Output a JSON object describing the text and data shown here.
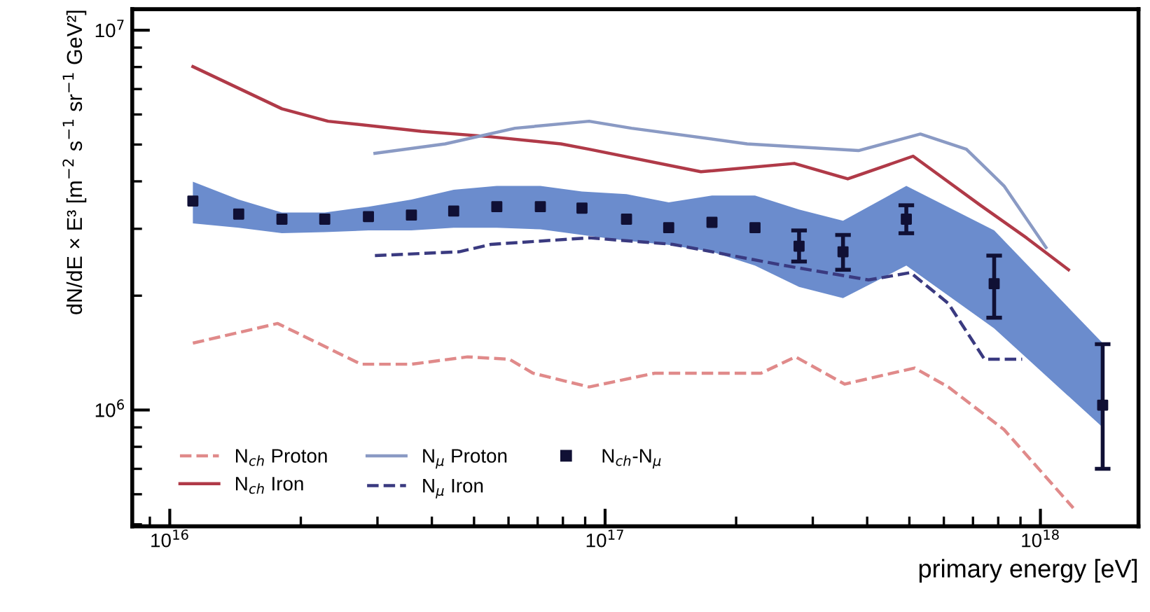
{
  "chart_data": {
    "type": "line",
    "xlabel": "primary energy [eV]",
    "ylabel": "dN/dE × E³ [m$^{−2}$ s$^{−1}$ sr$^{−1}$ GeV²]",
    "log": "xy",
    "xlim": [
      8200000000000000.0,
      1.68e+18
    ],
    "ylim": [
      494000,
      11360000
    ],
    "xticks": [
      {
        "value": 1e+16,
        "label": "10$^{16}$"
      },
      {
        "value": 1e+17,
        "label": "10$^{17}$"
      },
      {
        "value": 1e+18,
        "label": "10$^{18}$"
      }
    ],
    "yticks": [
      {
        "value": 1000000,
        "label": "10$^{6}$"
      },
      {
        "value": 10000000,
        "label": "10$^{7}$"
      }
    ],
    "grid": false,
    "legend": "bottom left",
    "series": [
      {
        "name": "N$_{ch}$ Proton",
        "color": "#e08a8a",
        "line_style": "dashed",
        "marker": "none",
        "x": [
          1.13e+16,
          1.77e+16,
          2.75e+16,
          3.59e+16,
          4.83e+16,
          6.03e+16,
          6.83e+16,
          9.19e+16,
          1.3e+17,
          2.28e+17,
          2.74e+17,
          3.55e+17,
          5.14e+17,
          6.14e+17,
          8.25e+17,
          1.19e+18
        ],
        "values": [
          1500000,
          1690000,
          1320000,
          1320000,
          1380000,
          1360000,
          1250000,
          1150000,
          1250000,
          1250000,
          1380000,
          1170000,
          1290000,
          1150000,
          888000,
          552000
        ]
      },
      {
        "name": "N$_{ch}$ Iron",
        "color": "#b03a48",
        "line_style": "solid",
        "marker": "none",
        "x": [
          1.13e+16,
          1.81e+16,
          2.31e+16,
          3.78e+16,
          5.47e+16,
          7.92e+16,
          9.19e+16,
          1.66e+17,
          2.72e+17,
          3.61e+17,
          5.1e+17,
          7.28e+17,
          9.29e+17,
          1.16e+18
        ],
        "values": [
          8020000,
          6210000,
          5760000,
          5420000,
          5240000,
          5020000,
          4860000,
          4240000,
          4460000,
          4060000,
          4660000,
          3460000,
          2840000,
          2340000
        ]
      },
      {
        "name": "N$_{μ}$ Proton",
        "color": "#8a9ac4",
        "line_style": "solid",
        "marker": "none",
        "x": [
          2.96e+16,
          4.29e+16,
          6.21e+16,
          9.19e+16,
          1.15e+17,
          2.12e+17,
          3.82e+17,
          5.3e+17,
          6.76e+17,
          8.25e+17,
          1.03e+18
        ],
        "values": [
          4740000,
          5020000,
          5520000,
          5760000,
          5520000,
          5020000,
          4820000,
          5330000,
          4860000,
          3890000,
          2680000
        ]
      },
      {
        "name": "N$_{μ}$ Iron",
        "color": "#3a3a80",
        "line_style": "dashed",
        "marker": "none",
        "x": [
          2.96e+16,
          4.62e+16,
          5.47e+16,
          9.19e+16,
          1.43e+17,
          2.59e+17,
          4.03e+17,
          5.03e+17,
          6.14e+17,
          7.44e+17,
          9.08e+17
        ],
        "values": [
          2550000,
          2610000,
          2730000,
          2840000,
          2730000,
          2400000,
          2200000,
          2300000,
          1910000,
          1360000,
          1360000
        ]
      },
      {
        "name": "N$_{ch}$-N$_{μ}$",
        "type": "scatter",
        "color": "#5b80c8",
        "marker": "square",
        "colors": [
          "#101035",
          "#101035",
          "#101035",
          "#101035",
          "#101035",
          "#101035",
          "#101035",
          "#101035",
          "#101035",
          "#101035",
          "#101035",
          "#101035",
          "#101035",
          "#101035",
          "#101035",
          "#101035",
          "#101035",
          "#101035",
          "#101035"
        ],
        "lower": [
          3100000,
          3020000,
          2920000,
          2940000,
          2970000,
          2970000,
          3020000,
          3020000,
          2990000,
          2890000,
          2790000,
          2720000,
          2610000,
          2400000,
          2110000,
          1970000,
          2400000,
          1640000,
          900000
        ],
        "upper": [
          3990000,
          3580000,
          3310000,
          3310000,
          3430000,
          3580000,
          3800000,
          3890000,
          3890000,
          3760000,
          3700000,
          3520000,
          3670000,
          3670000,
          3370000,
          3150000,
          3890000,
          2970000,
          1500000
        ],
        "x": [
          1.13e+16,
          1.44e+16,
          1.81e+16,
          2.27e+16,
          2.86e+16,
          3.59e+16,
          4.49e+16,
          5.64e+16,
          7.1e+16,
          8.85e+16,
          1.12e+17,
          1.4e+17,
          1.76e+17,
          2.21e+17,
          2.79e+17,
          3.52e+17,
          4.92e+17,
          7.83e+17,
          1.39e+18
        ],
        "values": [
          3550000,
          3280000,
          3180000,
          3180000,
          3230000,
          3260000,
          3340000,
          3430000,
          3430000,
          3400000,
          3180000,
          3020000,
          3120000,
          3020000,
          2700000,
          2610000,
          3180000,
          2150000,
          1030000
        ],
        "errors": [
          null,
          null,
          null,
          null,
          null,
          null,
          null,
          null,
          null,
          null,
          null,
          null,
          null,
          null,
          [
            2460000,
            2970000
          ],
          [
            2340000,
            2890000
          ],
          [
            2920000,
            3460000
          ],
          [
            1750000,
            2550000
          ],
          [
            700000,
            1490000
          ]
        ]
      }
    ]
  }
}
